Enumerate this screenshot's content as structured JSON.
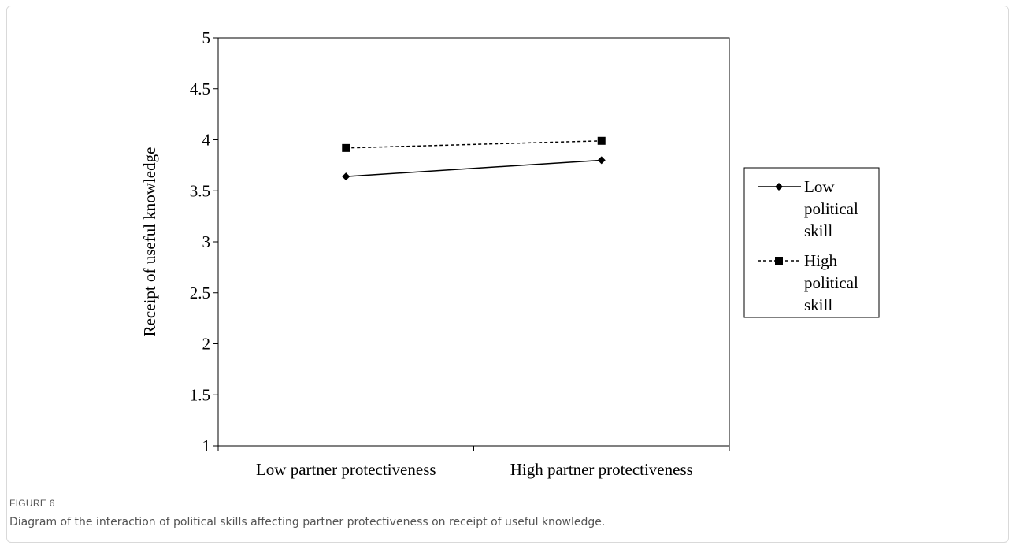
{
  "figure": {
    "label": "FIGURE 6",
    "caption": "Diagram of the interaction of political skills affecting partner protectiveness on receipt of useful knowledge."
  },
  "chart_data": {
    "type": "line",
    "ylabel": "Receipt of useful knowledge",
    "xlabel": "",
    "categories": [
      "Low partner protectiveness",
      "High partner protectiveness"
    ],
    "ylim": [
      1,
      5
    ],
    "yticks": [
      "1",
      "1.5",
      "2",
      "2.5",
      "3",
      "3.5",
      "4",
      "4.5",
      "5"
    ],
    "grid": false,
    "legend_position": "right",
    "series": [
      {
        "name": "Low political skill",
        "legend_lines": [
          "Low",
          "political",
          "skill"
        ],
        "marker": "diamond",
        "line_style": "solid",
        "values": [
          3.64,
          3.8
        ]
      },
      {
        "name": "High political skill",
        "legend_lines": [
          "High",
          "political",
          "skill"
        ],
        "marker": "square",
        "line_style": "dashed",
        "values": [
          3.92,
          3.99
        ]
      }
    ],
    "colors": {
      "line": "#000000"
    }
  }
}
